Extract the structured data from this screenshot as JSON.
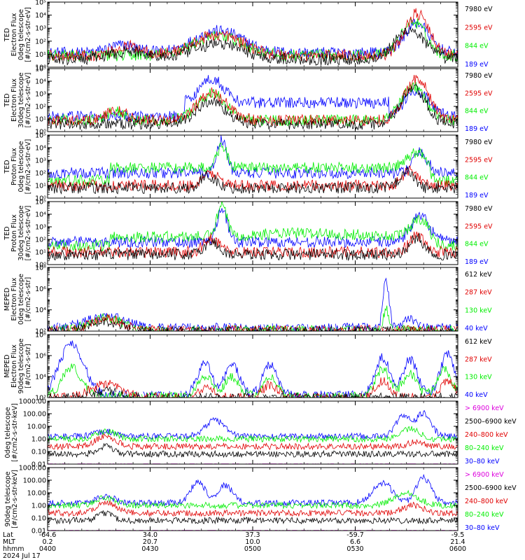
{
  "colors": {
    "black": "#000000",
    "red": "#e00000",
    "green": "#00ee00",
    "blue": "#0000ff",
    "magenta": "#dd00dd"
  },
  "chart_data": {
    "type": "line",
    "panels": [
      {
        "ylabel": [
          "TED",
          "Electron Flux",
          "0deg telescope",
          "[#/cm2-s-str-eV]"
        ],
        "scale": "log",
        "ylim": [
          1,
          100000
        ],
        "yticks": [
          {
            "v": 1,
            "label": "10⁰"
          },
          {
            "v": 10,
            "label": "10¹"
          },
          {
            "v": 100,
            "label": "10²"
          },
          {
            "v": 1000,
            "label": "10³"
          },
          {
            "v": 10000,
            "label": "10⁴"
          },
          {
            "v": 100000,
            "label": "10⁵"
          }
        ],
        "legend": [
          {
            "label": "7980 eV",
            "color": "black"
          },
          {
            "label": "2595 eV",
            "color": "red"
          },
          {
            "label": "844 eV",
            "color": "green"
          },
          {
            "label": "189 eV",
            "color": "blue"
          }
        ]
      },
      {
        "ylabel": [
          "TED",
          "Electron Flux",
          "30deg telescope",
          "[#/cm2-s-str-eV]"
        ],
        "scale": "log",
        "ylim": [
          1,
          100000
        ],
        "yticks": [
          {
            "v": 1,
            "label": "10⁰"
          },
          {
            "v": 10,
            "label": "10¹"
          },
          {
            "v": 100,
            "label": "10²"
          },
          {
            "v": 1000,
            "label": "10³"
          },
          {
            "v": 10000,
            "label": "10⁴"
          },
          {
            "v": 100000,
            "label": "10⁵"
          }
        ],
        "legend": [
          {
            "label": "7980 eV",
            "color": "black"
          },
          {
            "label": "2595 eV",
            "color": "red"
          },
          {
            "label": "844 eV",
            "color": "green"
          },
          {
            "label": "189 eV",
            "color": "blue"
          }
        ]
      },
      {
        "ylabel": [
          "TED",
          "Proton Flux",
          "0deg telescope",
          "[#/cm2-s-str-eV]"
        ],
        "scale": "log",
        "ylim": [
          1,
          100000
        ],
        "yticks": [
          {
            "v": 1,
            "label": "10⁰"
          },
          {
            "v": 10,
            "label": "10¹"
          },
          {
            "v": 100,
            "label": "10²"
          },
          {
            "v": 1000,
            "label": "10³"
          },
          {
            "v": 10000,
            "label": "10⁴"
          },
          {
            "v": 100000,
            "label": "10⁵"
          }
        ],
        "legend": [
          {
            "label": "7980 eV",
            "color": "black"
          },
          {
            "label": "2595 eV",
            "color": "red"
          },
          {
            "label": "844 eV",
            "color": "green"
          },
          {
            "label": "189 eV",
            "color": "blue"
          }
        ]
      },
      {
        "ylabel": [
          "TED",
          "Proton Flux",
          "30deg telescope",
          "[#/cm2-s-str-eV]"
        ],
        "scale": "log",
        "ylim": [
          1,
          100000
        ],
        "yticks": [
          {
            "v": 1,
            "label": "10⁰"
          },
          {
            "v": 10,
            "label": "10¹"
          },
          {
            "v": 100,
            "label": "10²"
          },
          {
            "v": 1000,
            "label": "10³"
          },
          {
            "v": 10000,
            "label": "10⁴"
          },
          {
            "v": 100000,
            "label": "10⁵"
          }
        ],
        "legend": [
          {
            "label": "7980 eV",
            "color": "black"
          },
          {
            "label": "2595 eV",
            "color": "red"
          },
          {
            "label": "844 eV",
            "color": "green"
          },
          {
            "label": "189 eV",
            "color": "blue"
          }
        ]
      },
      {
        "ylabel": [
          "MEPED",
          "Electron Flux",
          "0deg telescope",
          "[#/cm2-s-str]"
        ],
        "scale": "log",
        "ylim": [
          100,
          100000000
        ],
        "yticks": [
          {
            "v": 100,
            "label": "10²"
          },
          {
            "v": 10000,
            "label": "10⁴"
          },
          {
            "v": 1000000,
            "label": "10⁶"
          },
          {
            "v": 100000000,
            "label": "10⁸"
          }
        ],
        "legend": [
          {
            "label": "612 keV",
            "color": "black"
          },
          {
            "label": "287 keV",
            "color": "red"
          },
          {
            "label": "130 keV",
            "color": "green"
          },
          {
            "label": "40 keV",
            "color": "blue"
          }
        ]
      },
      {
        "ylabel": [
          "MEPED",
          "Electron Flux",
          "90deg telescope",
          "[#/cm2-s-str]"
        ],
        "scale": "log",
        "ylim": [
          100,
          100000000
        ],
        "yticks": [
          {
            "v": 100,
            "label": "10²"
          },
          {
            "v": 10000,
            "label": "10⁴"
          },
          {
            "v": 1000000,
            "label": "10⁶"
          },
          {
            "v": 100000000,
            "label": "10⁸"
          }
        ],
        "legend": [
          {
            "label": "612 keV",
            "color": "black"
          },
          {
            "label": "287 keV",
            "color": "red"
          },
          {
            "label": "130 keV",
            "color": "green"
          },
          {
            "label": "40 keV",
            "color": "blue"
          }
        ]
      },
      {
        "ylabel": [
          "0deg telescope",
          "[#/cm2-s-str-keV]"
        ],
        "scale": "log",
        "ylim": [
          0.01,
          1000
        ],
        "yticks": [
          {
            "v": 0.01,
            "label": "0.01"
          },
          {
            "v": 0.1,
            "label": "0.10"
          },
          {
            "v": 1,
            "label": "1.00"
          },
          {
            "v": 10,
            "label": "10.00"
          },
          {
            "v": 100,
            "label": "100.00"
          },
          {
            "v": 1000,
            "label": "1000.00"
          }
        ],
        "legend": [
          {
            "label": "> 6900 keV",
            "color": "magenta"
          },
          {
            "label": "2500–6900 keV",
            "color": "black"
          },
          {
            "label": "240–800 keV",
            "color": "red"
          },
          {
            "label": "80–240 keV",
            "color": "green"
          },
          {
            "label": "30–80 keV",
            "color": "blue"
          }
        ]
      },
      {
        "ylabel": [
          "90deg telescope",
          "[#/cm2-s-str-keV]"
        ],
        "scale": "log",
        "ylim": [
          0.01,
          1000
        ],
        "yticks": [
          {
            "v": 0.01,
            "label": "0.01"
          },
          {
            "v": 0.1,
            "label": "0.10"
          },
          {
            "v": 1,
            "label": "1.00"
          },
          {
            "v": 10,
            "label": "10.00"
          },
          {
            "v": 100,
            "label": "100.00"
          },
          {
            "v": 1000,
            "label": "1000.00"
          }
        ],
        "legend": [
          {
            "label": "> 6900 keV",
            "color": "magenta"
          },
          {
            "label": "2500–6900 keV",
            "color": "black"
          },
          {
            "label": "240–800 keV",
            "color": "red"
          },
          {
            "label": "80–240 keV",
            "color": "green"
          },
          {
            "label": "30–80 keV",
            "color": "blue"
          }
        ]
      }
    ],
    "x_axis": {
      "range": [
        "04:00",
        "06:00"
      ],
      "row_labels": [
        "Lat",
        "MLT",
        "hhmm",
        "2024 Jul 17"
      ],
      "ticks": [
        {
          "time": "04:00",
          "lat": "-64.6",
          "mlt": "0.2",
          "hhmm": "0400"
        },
        {
          "time": "04:30",
          "lat": "34.0",
          "mlt": "20.7",
          "hhmm": "0430"
        },
        {
          "time": "05:00",
          "lat": "37.3",
          "mlt": "10.0",
          "hhmm": "0500"
        },
        {
          "time": "05:30",
          "lat": "-59.7",
          "mlt": "6.6",
          "hhmm": "0530"
        },
        {
          "time": "06:00",
          "lat": "-9.5",
          "mlt": "21.4",
          "hhmm": "0600"
        }
      ]
    }
  }
}
